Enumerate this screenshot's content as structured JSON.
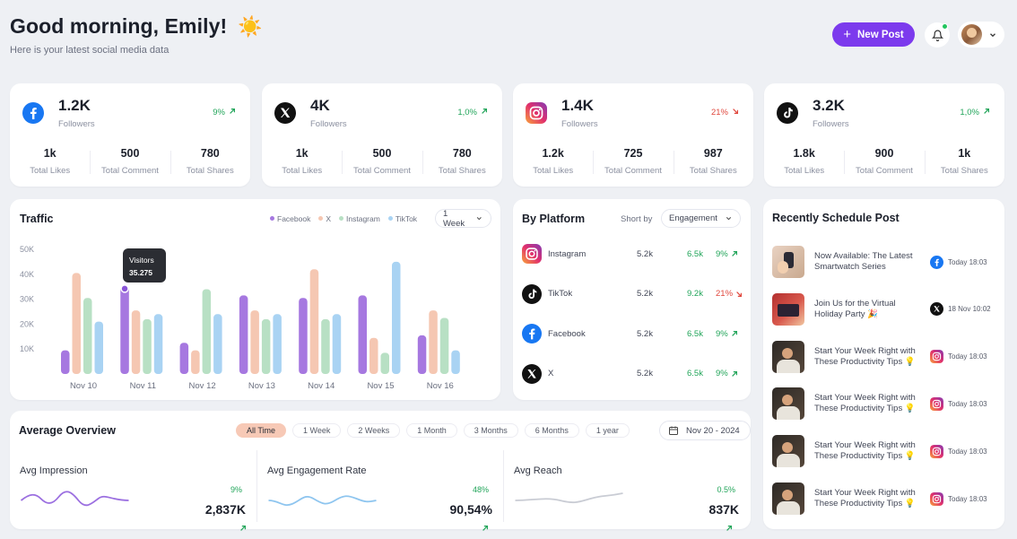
{
  "header": {
    "greeting": "Good morning, Emily!",
    "greeting_icon": "sun-icon",
    "subtitle": "Here is your latest social media data",
    "new_post_label": "New Post",
    "accent": "#7c3aed"
  },
  "platform_cards": [
    {
      "platform": "Facebook",
      "icon": "facebook-icon",
      "followers": "1.2K",
      "followers_label": "Followers",
      "change": "9%",
      "direction": "up",
      "stats": [
        {
          "value": "1k",
          "label": "Total Likes"
        },
        {
          "value": "500",
          "label": "Total Comment"
        },
        {
          "value": "780",
          "label": "Total Shares"
        }
      ]
    },
    {
      "platform": "X",
      "icon": "x-icon",
      "followers": "4K",
      "followers_label": "Followers",
      "change": "1,0%",
      "direction": "up",
      "stats": [
        {
          "value": "1k",
          "label": "Total Likes"
        },
        {
          "value": "500",
          "label": "Total Comment"
        },
        {
          "value": "780",
          "label": "Total Shares"
        }
      ]
    },
    {
      "platform": "Instagram",
      "icon": "instagram-icon",
      "followers": "1.4K",
      "followers_label": "Followers",
      "change": "21%",
      "direction": "down",
      "stats": [
        {
          "value": "1.2k",
          "label": "Total Likes"
        },
        {
          "value": "725",
          "label": "Total Comment"
        },
        {
          "value": "987",
          "label": "Total Shares"
        }
      ]
    },
    {
      "platform": "TikTok",
      "icon": "tiktok-icon",
      "followers": "3.2K",
      "followers_label": "Followers",
      "change": "1,0%",
      "direction": "up",
      "stats": [
        {
          "value": "1.8k",
          "label": "Total Likes"
        },
        {
          "value": "900",
          "label": "Total Comment"
        },
        {
          "value": "1k",
          "label": "Total Shares"
        }
      ]
    }
  ],
  "traffic": {
    "title": "Traffic",
    "period": "1 Week",
    "tooltip": {
      "label": "Visitors",
      "value": "35.275"
    }
  },
  "chart_data": {
    "type": "bar",
    "categories": [
      "Nov 10",
      "Nov 11",
      "Nov 12",
      "Nov 13",
      "Nov 14",
      "Nov 15",
      "Nov 16"
    ],
    "ylim": [
      0,
      50000
    ],
    "yticks": [
      "10K",
      "20K",
      "30K",
      "40K",
      "50K"
    ],
    "colors": {
      "Facebook": "#a678e0",
      "X": "#f5c7b2",
      "Instagram": "#b8e0c4",
      "TikTok": "#a9d3f3"
    },
    "series": [
      {
        "name": "Facebook",
        "values": [
          9500,
          35275,
          12500,
          31500,
          30500,
          31500,
          15500
        ]
      },
      {
        "name": "X",
        "values": [
          40500,
          25500,
          9500,
          25500,
          42000,
          14500,
          25500
        ]
      },
      {
        "name": "Instagram",
        "values": [
          30500,
          22000,
          34000,
          22000,
          22000,
          8500,
          22500
        ]
      },
      {
        "name": "TikTok",
        "values": [
          21000,
          24000,
          24000,
          24000,
          24000,
          45000,
          9500
        ]
      }
    ]
  },
  "by_platform": {
    "title": "By Platform",
    "sort_label": "Short by",
    "sort_value": "Engagement",
    "rows": [
      {
        "name": "Instagram",
        "icon": "instagram-icon",
        "value": "5.2k",
        "engagement": "6.5k",
        "change": "9%",
        "direction": "up"
      },
      {
        "name": "TikTok",
        "icon": "tiktok-icon",
        "value": "5.2k",
        "engagement": "9.2k",
        "change": "21%",
        "direction": "down"
      },
      {
        "name": "Facebook",
        "icon": "facebook-icon",
        "value": "5.2k",
        "engagement": "6.5k",
        "change": "9%",
        "direction": "up"
      },
      {
        "name": "X",
        "icon": "x-icon",
        "value": "5.2k",
        "engagement": "6.5k",
        "change": "9%",
        "direction": "up"
      }
    ]
  },
  "scheduled": {
    "title": "Recently Schedule Post",
    "items": [
      {
        "line1": "Now Available: The Latest",
        "line2": "Smartwatch Series",
        "platform_icon": "facebook-icon",
        "time": "Today 18:03",
        "thumb": "smartwatch"
      },
      {
        "line1": "Join Us for the Virtual",
        "line2": "Holiday Party 🎉",
        "platform_icon": "x-icon",
        "time": "18 Nov 10:02",
        "thumb": "party"
      },
      {
        "line1": "Start Your Week Right with",
        "line2": "These Productivity Tips 💡",
        "platform_icon": "instagram-icon",
        "time": "Today 18:03",
        "thumb": "person"
      },
      {
        "line1": "Start Your Week Right with",
        "line2": "These Productivity Tips 💡",
        "platform_icon": "instagram-icon",
        "time": "Today 18:03",
        "thumb": "person"
      },
      {
        "line1": "Start Your Week Right with",
        "line2": "These Productivity Tips 💡",
        "platform_icon": "instagram-icon",
        "time": "Today 18:03",
        "thumb": "person"
      },
      {
        "line1": "Start Your Week Right with",
        "line2": "These Productivity Tips 💡",
        "platform_icon": "instagram-icon",
        "time": "Today 18:03",
        "thumb": "person"
      }
    ]
  },
  "overview": {
    "title": "Average Overview",
    "ranges": [
      "All Time",
      "1 Week",
      "2 Weeks",
      "1 Month",
      "3 Months",
      "6 Months",
      "1 year"
    ],
    "active_range": "All Time",
    "date_range": "Nov 20 - 2024",
    "metrics": [
      {
        "title": "Avg Impression",
        "change": "9%",
        "value": "2,837K",
        "line_color": "#9b6fe0"
      },
      {
        "title": "Avg Engagement Rate",
        "change": "48%",
        "value": "90,54%",
        "line_color": "#8ec5ef"
      },
      {
        "title": "Avg Reach",
        "change": "0.5%",
        "value": "837K",
        "line_color": "#c9ccd4"
      }
    ]
  }
}
